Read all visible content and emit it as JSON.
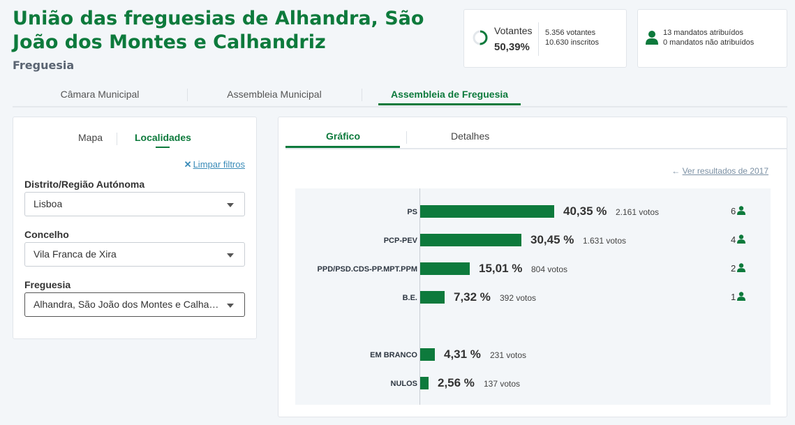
{
  "header": {
    "title": "União das freguesias de Alhandra, São João dos Montes e Calhandriz",
    "subtitle": "Freguesia"
  },
  "stats": {
    "votantes_label": "Votantes",
    "votantes_pct": "50,39%",
    "votantes_count": "5.356 votantes",
    "inscritos_count": "10.630 inscritos",
    "mandatos_atribuidos": "13 mandatos atribuídos",
    "mandatos_nao_atribuidos": "0 mandatos não atribuídos",
    "participation": 0.5039
  },
  "main_tabs": [
    {
      "label": "Câmara Municipal",
      "active": false
    },
    {
      "label": "Assembleia Municipal",
      "active": false
    },
    {
      "label": "Assembleia de Freguesia",
      "active": true
    }
  ],
  "filters": {
    "tabs": [
      {
        "label": "Mapa",
        "active": false
      },
      {
        "label": "Localidades",
        "active": true
      }
    ],
    "clear_label": "Limpar filtros",
    "distrito": {
      "label": "Distrito/Região Autónoma",
      "value": "Lisboa"
    },
    "concelho": {
      "label": "Concelho",
      "value": "Vila Franca de Xira"
    },
    "freguesia": {
      "label": "Freguesia",
      "value": "Alhandra, São João dos Montes e Calhandriz"
    }
  },
  "results": {
    "tabs": [
      {
        "label": "Gráfico",
        "active": true
      },
      {
        "label": "Detalhes",
        "active": false
      }
    ],
    "previous_link": "Ver resultados de 2017"
  },
  "chart_data": {
    "type": "bar",
    "orientation": "horizontal",
    "categories": [
      "PS",
      "PCP-PEV",
      "PPD/PSD.CDS-PP.MPT.PPM",
      "B.E.",
      "EM BRANCO",
      "NULOS"
    ],
    "values": [
      40.35,
      30.45,
      15.01,
      7.32,
      4.31,
      2.56
    ],
    "value_labels": [
      "40,35 %",
      "30,45 %",
      "15,01 %",
      "7,32 %",
      "4,31 %",
      "2,56 %"
    ],
    "votes_labels": [
      "2.161 votos",
      "1.631 votos",
      "804 votos",
      "392 votos",
      "231 votos",
      "137 votos"
    ],
    "seats": [
      6,
      4,
      2,
      1,
      null,
      null
    ],
    "bar_color": "#0d7a3c"
  },
  "colors": {
    "accent": "#0d7a3c",
    "link": "#3a8bb8"
  }
}
